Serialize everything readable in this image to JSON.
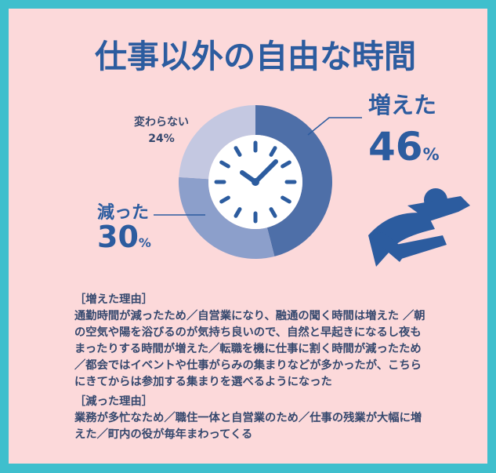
{
  "chart_data": {
    "type": "donut",
    "title": "仕事以外の自由な時間",
    "categories": [
      "増えた",
      "減った",
      "変わらない"
    ],
    "values": [
      46,
      30,
      24
    ],
    "value_labels": [
      "46%",
      "30%",
      "24%"
    ],
    "colors": [
      "#4e6fa8",
      "#8c9fcb",
      "#c4c8e1"
    ]
  },
  "reasons": [
    {
      "heading": "［増えた理由］",
      "lines": [
        "通勤時間が減ったため／自営業になり、融通の聞く時間は増えた ／朝",
        "の空気や陽を浴びるのが気持ち良いので、自然と早起きになるし夜も",
        "まったりする時間が増えた／転職を機に仕事に割く時間が減ったため",
        "／都会ではイベントや仕事がらみの集まりなどが多かったが、こちら",
        "にきてからは参加する集まりを選べるようになった"
      ]
    },
    {
      "heading": "［減った理由］",
      "lines": [
        "業務が多忙なため／職住一体と自営業のため／仕事の残業が大幅に増",
        "えた／町内の役が毎年まわってくる"
      ]
    }
  ]
}
